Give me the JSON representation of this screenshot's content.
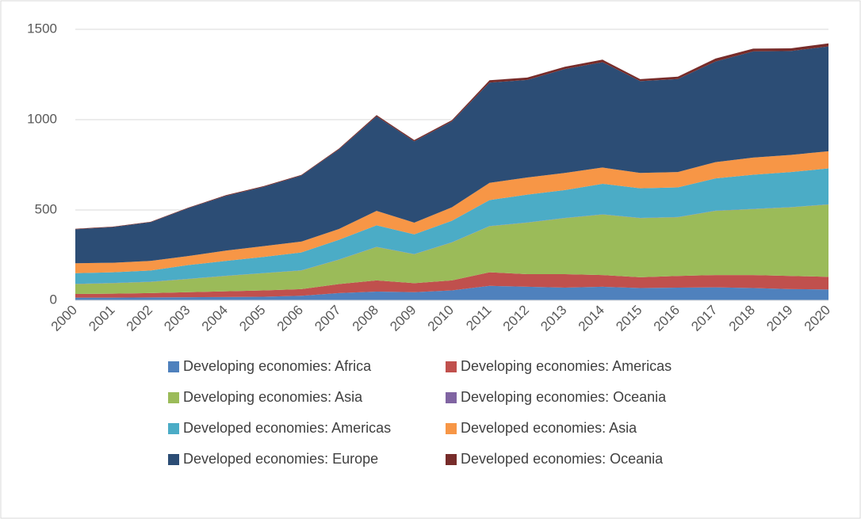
{
  "chart_data": {
    "type": "stacked_area",
    "categories": [
      "2000",
      "2001",
      "2002",
      "2003",
      "2004",
      "2005",
      "2006",
      "2007",
      "2008",
      "2009",
      "2010",
      "2011",
      "2012",
      "2013",
      "2014",
      "2015",
      "2016",
      "2017",
      "2018",
      "2019",
      "2020"
    ],
    "series": [
      {
        "name": "Developing economies: Africa",
        "color": "#4f81bd",
        "values": [
          15,
          15,
          16,
          17,
          18,
          20,
          25,
          40,
          48,
          45,
          55,
          80,
          75,
          70,
          75,
          68,
          70,
          72,
          68,
          62,
          60
        ]
      },
      {
        "name": "Developing economies: Americas",
        "color": "#c0504d",
        "values": [
          20,
          22,
          24,
          28,
          32,
          35,
          37,
          50,
          62,
          50,
          55,
          75,
          70,
          75,
          65,
          60,
          65,
          68,
          72,
          73,
          70
        ]
      },
      {
        "name": "Developing economies: Asia",
        "color": "#9bbb59",
        "values": [
          55,
          58,
          62,
          73,
          85,
          95,
          103,
          135,
          185,
          160,
          210,
          255,
          285,
          310,
          335,
          327,
          325,
          355,
          365,
          380,
          400
        ]
      },
      {
        "name": "Developing economies: Oceania",
        "color": "#8064a2",
        "values": [
          1,
          1,
          1,
          1,
          1,
          1,
          1,
          1,
          1,
          1,
          1,
          1,
          1,
          1,
          1,
          1,
          1,
          1,
          1,
          1,
          1
        ]
      },
      {
        "name": "Developed economies: Americas",
        "color": "#4bacc6",
        "values": [
          59,
          59,
          62,
          76,
          82,
          89,
          99,
          109,
          119,
          109,
          119,
          144,
          154,
          154,
          169,
          164,
          164,
          179,
          189,
          194,
          199
        ]
      },
      {
        "name": "Developed economies: Asia",
        "color": "#f79646",
        "values": [
          55,
          53,
          53,
          50,
          57,
          60,
          60,
          60,
          80,
          65,
          75,
          95,
          95,
          95,
          90,
          85,
          85,
          90,
          95,
          95,
          95
        ]
      },
      {
        "name": "Developed economies: Europe",
        "color": "#2c4d75",
        "values": [
          188,
          197,
          214,
          265,
          303,
          328,
          365,
          440,
          523,
          450,
          475,
          555,
          540,
          575,
          583,
          508,
          515,
          557,
          588,
          575,
          580
        ]
      },
      {
        "name": "Developed economies: Oceania",
        "color": "#772c2a",
        "values": [
          3,
          3,
          3,
          3,
          4,
          4,
          4,
          5,
          7,
          7,
          7,
          13,
          13,
          13,
          14,
          11,
          13,
          16,
          15,
          15,
          17
        ]
      }
    ],
    "ylim": [
      0,
      1500
    ],
    "yticks": [
      0,
      500,
      1000,
      1500
    ],
    "grid": true,
    "legend": "bottom"
  }
}
